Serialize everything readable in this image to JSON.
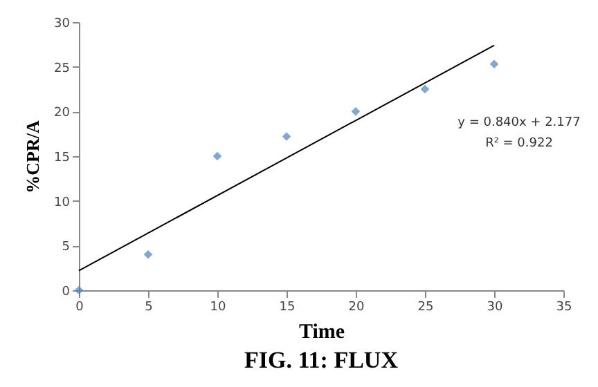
{
  "chart_data": {
    "type": "scatter",
    "title": "FIG. 11: FLUX",
    "xlabel": "Time",
    "ylabel": "%CPR/A",
    "x": [
      0,
      5,
      10,
      15,
      20,
      25,
      30
    ],
    "series": [
      {
        "color": "#4f81bd",
        "marker": "diamond",
        "values": [
          0,
          4,
          15,
          17.2,
          20,
          22.5,
          25.3
        ]
      },
      {
        "type": "line",
        "color": "#000000",
        "x": [
          0,
          30
        ],
        "values": [
          2.2,
          27.4
        ]
      }
    ],
    "annotations": [
      "y = 0.840x + 2.177",
      "R² = 0.922"
    ],
    "xlim": [
      0,
      35
    ],
    "xticks": [
      0,
      5,
      10,
      15,
      20,
      25,
      30,
      35
    ],
    "ylim": [
      0,
      30
    ],
    "yticks": [
      0,
      5,
      10,
      15,
      20,
      25,
      30
    ],
    "grid": false
  }
}
